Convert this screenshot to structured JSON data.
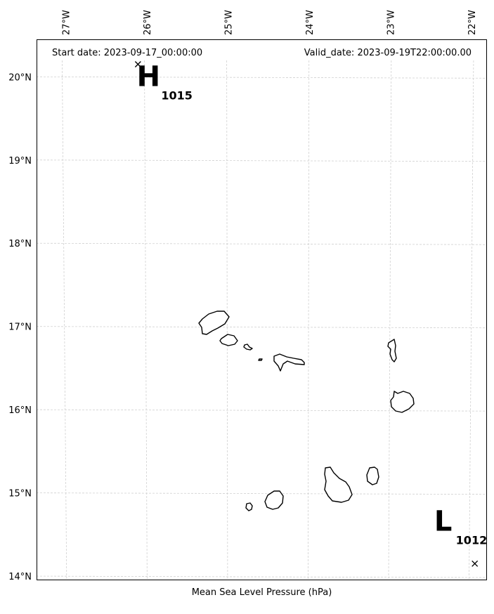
{
  "header": {
    "start_date": "Start date: 2023-09-17_00:00:00",
    "valid_date": "Valid_date: 2023-09-19T22:00:00.00"
  },
  "caption": "Mean Sea Level Pressure (hPa)",
  "axes": {
    "lon_ticks": [
      {
        "label": "27°W",
        "value": -27
      },
      {
        "label": "26°W",
        "value": -26
      },
      {
        "label": "25°W",
        "value": -25
      },
      {
        "label": "24°W",
        "value": -24
      },
      {
        "label": "23°W",
        "value": -23
      },
      {
        "label": "22°W",
        "value": -22
      }
    ],
    "lat_ticks": [
      {
        "label": "20°N",
        "value": 20
      },
      {
        "label": "19°N",
        "value": 19
      },
      {
        "label": "18°N",
        "value": 18
      },
      {
        "label": "17°N",
        "value": 17
      },
      {
        "label": "16°N",
        "value": 16
      },
      {
        "label": "15°N",
        "value": 15
      },
      {
        "label": "14°N",
        "value": 14
      }
    ],
    "lon_range": [
      -27.35,
      -21.8
    ],
    "lat_range": [
      13.95,
      20.45
    ],
    "gridlines": true
  },
  "pressure_centers": [
    {
      "type": "H",
      "value": "1015",
      "lon": -26.1,
      "lat": 20.15
    },
    {
      "type": "L",
      "value": "1012",
      "lon": -21.95,
      "lat": 14.15
    }
  ],
  "islands": [
    "Santo Antão",
    "São Vicente",
    "Santa Luzia",
    "Branco",
    "São Nicolau",
    "Sal",
    "Boa Vista",
    "Brava",
    "Fogo",
    "Santiago",
    "Maio"
  ]
}
